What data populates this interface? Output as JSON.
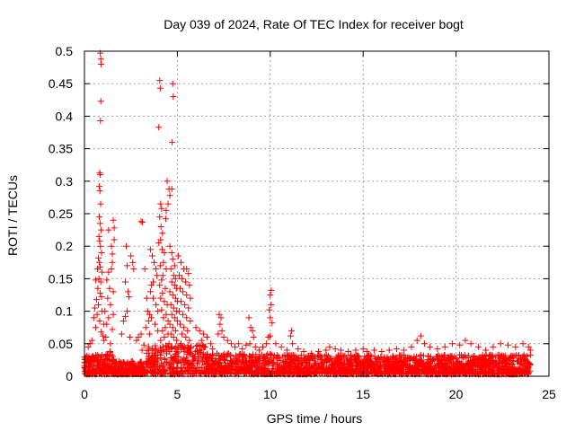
{
  "chart_data": {
    "type": "scatter",
    "title": "Day 039 of 2024, Rate Of TEC Index for receiver bogt",
    "xlabel": "GPS time / hours",
    "ylabel": "ROTI / TECUs",
    "xlim": [
      0,
      25
    ],
    "ylim": [
      0,
      0.5
    ],
    "x_ticks": [
      0,
      5,
      10,
      15,
      20,
      25
    ],
    "x_tick_labels": [
      "0",
      "5",
      "10",
      "15",
      "20",
      "25"
    ],
    "y_ticks": [
      0,
      0.05,
      0.1,
      0.15,
      0.2,
      0.25,
      0.3,
      0.35,
      0.4,
      0.45,
      0.5
    ],
    "y_tick_labels": [
      "0",
      "0.05",
      "0.1",
      "0.15",
      "0.2",
      "0.25",
      "0.3",
      "0.35",
      "0.4",
      "0.45",
      "0.5"
    ],
    "grid": true,
    "marker": "+",
    "series_color": "#ff0000",
    "points": [
      [
        0.85,
        0.497
      ],
      [
        0.88,
        0.488
      ],
      [
        0.9,
        0.48
      ],
      [
        0.88,
        0.423
      ],
      [
        0.86,
        0.393
      ],
      [
        0.82,
        0.313
      ],
      [
        0.85,
        0.31
      ],
      [
        0.8,
        0.292
      ],
      [
        0.83,
        0.285
      ],
      [
        0.87,
        0.265
      ],
      [
        0.8,
        0.245
      ],
      [
        0.84,
        0.235
      ],
      [
        0.9,
        0.225
      ],
      [
        0.78,
        0.215
      ],
      [
        0.82,
        0.208
      ],
      [
        0.86,
        0.2
      ],
      [
        0.92,
        0.19
      ],
      [
        0.75,
        0.182
      ],
      [
        0.8,
        0.175
      ],
      [
        0.85,
        0.168
      ],
      [
        0.95,
        0.16
      ],
      [
        0.7,
        0.165
      ],
      [
        0.78,
        0.15
      ],
      [
        0.88,
        0.145
      ],
      [
        0.6,
        0.148
      ],
      [
        0.72,
        0.135
      ],
      [
        0.84,
        0.128
      ],
      [
        0.92,
        0.122
      ],
      [
        0.65,
        0.118
      ],
      [
        0.75,
        0.11
      ],
      [
        0.55,
        0.105
      ],
      [
        0.95,
        0.1
      ],
      [
        0.68,
        0.095
      ],
      [
        0.5,
        0.09
      ],
      [
        0.82,
        0.085
      ],
      [
        1.05,
        0.08
      ],
      [
        0.6,
        0.075
      ],
      [
        0.9,
        0.068
      ],
      [
        1.0,
        0.062
      ],
      [
        0.4,
        0.055
      ],
      [
        0.3,
        0.05
      ],
      [
        0.2,
        0.045
      ],
      [
        1.3,
        0.225
      ],
      [
        1.45,
        0.2
      ],
      [
        1.5,
        0.188
      ],
      [
        1.55,
        0.24
      ],
      [
        1.6,
        0.228
      ],
      [
        1.6,
        0.21
      ],
      [
        1.5,
        0.175
      ],
      [
        1.45,
        0.165
      ],
      [
        1.3,
        0.16
      ],
      [
        1.2,
        0.148
      ],
      [
        1.35,
        0.135
      ],
      [
        1.55,
        0.13
      ],
      [
        1.25,
        0.12
      ],
      [
        1.4,
        0.11
      ],
      [
        1.1,
        0.1
      ],
      [
        1.55,
        0.095
      ],
      [
        1.3,
        0.09
      ],
      [
        1.2,
        0.08
      ],
      [
        1.5,
        0.072
      ],
      [
        1.15,
        0.06
      ],
      [
        1.05,
        0.055
      ],
      [
        1.4,
        0.05
      ],
      [
        2.25,
        0.2
      ],
      [
        2.5,
        0.185
      ],
      [
        2.6,
        0.175
      ],
      [
        2.3,
        0.17
      ],
      [
        2.65,
        0.165
      ],
      [
        2.2,
        0.145
      ],
      [
        2.35,
        0.13
      ],
      [
        2.4,
        0.122
      ],
      [
        2.3,
        0.1
      ],
      [
        2.2,
        0.092
      ],
      [
        2.1,
        0.085
      ],
      [
        2.0,
        0.065
      ],
      [
        2.45,
        0.06
      ],
      [
        3.05,
        0.238
      ],
      [
        3.12,
        0.237
      ],
      [
        3.25,
        0.165
      ],
      [
        3.35,
        0.12
      ],
      [
        3.4,
        0.1
      ],
      [
        3.5,
        0.095
      ],
      [
        3.45,
        0.085
      ],
      [
        3.3,
        0.075
      ],
      [
        3.05,
        0.065
      ],
      [
        2.9,
        0.06
      ],
      [
        2.8,
        0.055
      ],
      [
        3.2,
        0.048
      ],
      [
        3.1,
        0.04
      ],
      [
        3.35,
        0.035
      ],
      [
        3.45,
        0.03
      ],
      [
        3.5,
        0.026
      ],
      [
        3.45,
        0.02
      ],
      [
        3.55,
        0.195
      ],
      [
        3.65,
        0.185
      ],
      [
        3.75,
        0.175
      ],
      [
        3.85,
        0.165
      ],
      [
        3.9,
        0.155
      ],
      [
        3.7,
        0.145
      ],
      [
        3.6,
        0.14
      ],
      [
        3.55,
        0.13
      ],
      [
        3.7,
        0.12
      ],
      [
        3.85,
        0.11
      ],
      [
        3.95,
        0.1
      ],
      [
        3.6,
        0.09
      ],
      [
        3.8,
        0.08
      ],
      [
        3.95,
        0.07
      ],
      [
        3.5,
        0.065
      ],
      [
        4.05,
        0.455
      ],
      [
        4.08,
        0.443
      ],
      [
        4.0,
        0.383
      ],
      [
        4.1,
        0.265
      ],
      [
        4.15,
        0.258
      ],
      [
        4.05,
        0.245
      ],
      [
        4.12,
        0.23
      ],
      [
        4.2,
        0.22
      ],
      [
        4.1,
        0.21
      ],
      [
        4.0,
        0.205
      ],
      [
        4.18,
        0.195
      ],
      [
        4.3,
        0.19
      ],
      [
        4.25,
        0.175
      ],
      [
        4.08,
        0.17
      ],
      [
        4.4,
        0.165
      ],
      [
        4.22,
        0.155
      ],
      [
        4.15,
        0.148
      ],
      [
        4.05,
        0.14
      ],
      [
        4.35,
        0.135
      ],
      [
        4.2,
        0.128
      ],
      [
        4.1,
        0.12
      ],
      [
        4.3,
        0.115
      ],
      [
        4.45,
        0.11
      ],
      [
        4.15,
        0.102
      ],
      [
        4.4,
        0.095
      ],
      [
        4.25,
        0.09
      ],
      [
        4.5,
        0.085
      ],
      [
        4.35,
        0.075
      ],
      [
        4.2,
        0.07
      ],
      [
        4.5,
        0.065
      ],
      [
        4.3,
        0.06
      ],
      [
        4.1,
        0.055
      ],
      [
        4.45,
        0.3
      ],
      [
        4.55,
        0.288
      ],
      [
        4.7,
        0.288
      ],
      [
        4.6,
        0.278
      ],
      [
        4.5,
        0.265
      ],
      [
        4.4,
        0.255
      ],
      [
        4.38,
        0.242
      ],
      [
        4.75,
        0.45
      ],
      [
        4.78,
        0.43
      ],
      [
        4.72,
        0.36
      ],
      [
        4.6,
        0.2
      ],
      [
        4.7,
        0.19
      ],
      [
        4.75,
        0.18
      ],
      [
        4.85,
        0.17
      ],
      [
        4.65,
        0.165
      ],
      [
        4.8,
        0.155
      ],
      [
        4.9,
        0.15
      ],
      [
        4.7,
        0.145
      ],
      [
        4.85,
        0.14
      ],
      [
        4.95,
        0.135
      ],
      [
        4.6,
        0.13
      ],
      [
        4.75,
        0.125
      ],
      [
        4.9,
        0.12
      ],
      [
        5.0,
        0.115
      ],
      [
        4.65,
        0.11
      ],
      [
        4.8,
        0.105
      ],
      [
        4.95,
        0.1
      ],
      [
        4.7,
        0.095
      ],
      [
        4.85,
        0.09
      ],
      [
        5.0,
        0.085
      ],
      [
        4.6,
        0.08
      ],
      [
        4.75,
        0.075
      ],
      [
        4.9,
        0.07
      ],
      [
        4.65,
        0.065
      ],
      [
        4.8,
        0.06
      ],
      [
        4.95,
        0.055
      ],
      [
        4.55,
        0.05
      ],
      [
        4.7,
        0.045
      ],
      [
        5.05,
        0.185
      ],
      [
        5.2,
        0.175
      ],
      [
        5.35,
        0.165
      ],
      [
        5.5,
        0.165
      ],
      [
        5.6,
        0.158
      ],
      [
        5.1,
        0.155
      ],
      [
        5.25,
        0.15
      ],
      [
        5.45,
        0.145
      ],
      [
        5.65,
        0.14
      ],
      [
        5.15,
        0.135
      ],
      [
        5.3,
        0.13
      ],
      [
        5.5,
        0.125
      ],
      [
        5.7,
        0.12
      ],
      [
        5.2,
        0.115
      ],
      [
        5.4,
        0.11
      ],
      [
        5.6,
        0.105
      ],
      [
        5.1,
        0.1
      ],
      [
        5.3,
        0.095
      ],
      [
        5.5,
        0.09
      ],
      [
        5.7,
        0.085
      ],
      [
        5.15,
        0.08
      ],
      [
        5.35,
        0.075
      ],
      [
        5.55,
        0.07
      ],
      [
        5.25,
        0.065
      ],
      [
        5.45,
        0.06
      ],
      [
        5.65,
        0.055
      ],
      [
        5.2,
        0.05
      ],
      [
        5.4,
        0.045
      ],
      [
        5.6,
        0.04
      ],
      [
        6.0,
        0.075
      ],
      [
        6.2,
        0.07
      ],
      [
        6.4,
        0.065
      ],
      [
        6.6,
        0.06
      ],
      [
        6.3,
        0.055
      ],
      [
        6.8,
        0.05
      ],
      [
        6.1,
        0.048
      ],
      [
        6.5,
        0.045
      ],
      [
        6.9,
        0.042
      ],
      [
        6.2,
        0.04
      ],
      [
        7.2,
        0.065
      ],
      [
        7.3,
        0.08
      ],
      [
        7.35,
        0.09
      ],
      [
        7.25,
        0.095
      ],
      [
        7.4,
        0.07
      ],
      [
        7.5,
        0.06
      ],
      [
        7.7,
        0.055
      ],
      [
        7.9,
        0.05
      ],
      [
        8.1,
        0.045
      ],
      [
        8.3,
        0.05
      ],
      [
        8.5,
        0.042
      ],
      [
        8.7,
        0.048
      ],
      [
        8.9,
        0.05
      ],
      [
        9.1,
        0.06
      ],
      [
        9.05,
        0.07
      ],
      [
        8.85,
        0.09
      ],
      [
        8.95,
        0.075
      ],
      [
        9.2,
        0.045
      ],
      [
        9.4,
        0.04
      ],
      [
        9.6,
        0.045
      ],
      [
        9.8,
        0.05
      ],
      [
        9.9,
        0.06
      ],
      [
        10.0,
        0.062
      ],
      [
        10.1,
        0.082
      ],
      [
        10.0,
        0.09
      ],
      [
        9.95,
        0.102
      ],
      [
        10.05,
        0.11
      ],
      [
        10.0,
        0.125
      ],
      [
        10.05,
        0.132
      ],
      [
        10.3,
        0.05
      ],
      [
        10.6,
        0.045
      ],
      [
        10.9,
        0.04
      ],
      [
        11.1,
        0.062
      ],
      [
        11.15,
        0.07
      ],
      [
        11.2,
        0.05
      ],
      [
        11.5,
        0.042
      ],
      [
        11.8,
        0.038
      ],
      [
        12.2,
        0.035
      ],
      [
        12.6,
        0.038
      ],
      [
        13.0,
        0.04
      ],
      [
        13.2,
        0.045
      ],
      [
        13.5,
        0.042
      ],
      [
        13.8,
        0.04
      ],
      [
        14.2,
        0.038
      ],
      [
        14.6,
        0.04
      ],
      [
        15.0,
        0.042
      ],
      [
        15.2,
        0.038
      ],
      [
        15.6,
        0.04
      ],
      [
        16.0,
        0.038
      ],
      [
        16.4,
        0.04
      ],
      [
        16.8,
        0.042
      ],
      [
        17.2,
        0.04
      ],
      [
        17.6,
        0.045
      ],
      [
        17.9,
        0.055
      ],
      [
        18.1,
        0.062
      ],
      [
        18.3,
        0.05
      ],
      [
        18.6,
        0.045
      ],
      [
        19.0,
        0.042
      ],
      [
        19.4,
        0.045
      ],
      [
        19.8,
        0.05
      ],
      [
        20.2,
        0.048
      ],
      [
        20.5,
        0.055
      ],
      [
        20.8,
        0.05
      ],
      [
        21.2,
        0.045
      ],
      [
        21.6,
        0.04
      ],
      [
        22.0,
        0.045
      ],
      [
        22.4,
        0.05
      ],
      [
        22.8,
        0.048
      ],
      [
        23.2,
        0.045
      ],
      [
        23.6,
        0.05
      ],
      [
        23.9,
        0.045
      ],
      [
        24.0,
        0.04
      ]
    ]
  }
}
